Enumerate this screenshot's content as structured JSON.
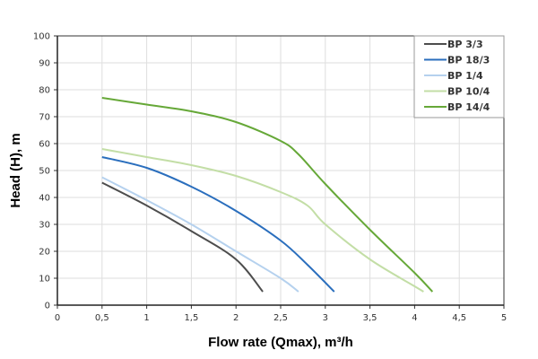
{
  "chart_data": {
    "type": "line",
    "title": "",
    "xlabel": "Flow rate (Qmax), m³/h",
    "ylabel": "Head (H), m",
    "xlim": [
      0,
      5
    ],
    "ylim": [
      0,
      100
    ],
    "x_ticks": [
      "0",
      "0,5",
      "1",
      "1,5",
      "2",
      "2,5",
      "3",
      "3,5",
      "4",
      "4,5",
      "5"
    ],
    "y_ticks": [
      "0",
      "10",
      "20",
      "30",
      "40",
      "50",
      "60",
      "70",
      "80",
      "90",
      "100"
    ],
    "grid": true,
    "legend_position": "top-right",
    "series": [
      {
        "name": "BP 3/3",
        "color": "#4d4d4d",
        "points": [
          [
            0.5,
            45.5
          ],
          [
            1,
            37
          ],
          [
            1.5,
            27.5
          ],
          [
            2,
            17
          ],
          [
            2.3,
            5
          ]
        ]
      },
      {
        "name": "BP 18/3",
        "color": "#2a6ebd",
        "points": [
          [
            0.5,
            55
          ],
          [
            1,
            51
          ],
          [
            1.5,
            44
          ],
          [
            2,
            35
          ],
          [
            2.5,
            24
          ],
          [
            2.8,
            15
          ],
          [
            3.1,
            5
          ]
        ]
      },
      {
        "name": "BP 1/4",
        "color": "#b5d1ee",
        "points": [
          [
            0.5,
            47.5
          ],
          [
            1,
            39
          ],
          [
            1.5,
            30
          ],
          [
            2,
            20
          ],
          [
            2.5,
            10
          ],
          [
            2.7,
            5
          ]
        ]
      },
      {
        "name": "BP 10/4",
        "color": "#c3dea6",
        "points": [
          [
            0.5,
            58
          ],
          [
            1,
            55
          ],
          [
            1.5,
            52
          ],
          [
            2,
            48
          ],
          [
            2.5,
            42
          ],
          [
            2.8,
            37
          ],
          [
            3,
            30
          ],
          [
            3.5,
            17
          ],
          [
            4,
            7
          ],
          [
            4.1,
            5
          ]
        ]
      },
      {
        "name": "BP 14/4",
        "color": "#66a838",
        "points": [
          [
            0.5,
            77
          ],
          [
            1,
            74.5
          ],
          [
            1.5,
            72
          ],
          [
            2,
            68
          ],
          [
            2.5,
            61
          ],
          [
            2.7,
            56
          ],
          [
            3,
            45
          ],
          [
            3.5,
            28
          ],
          [
            4,
            12
          ],
          [
            4.2,
            5
          ]
        ]
      }
    ]
  }
}
